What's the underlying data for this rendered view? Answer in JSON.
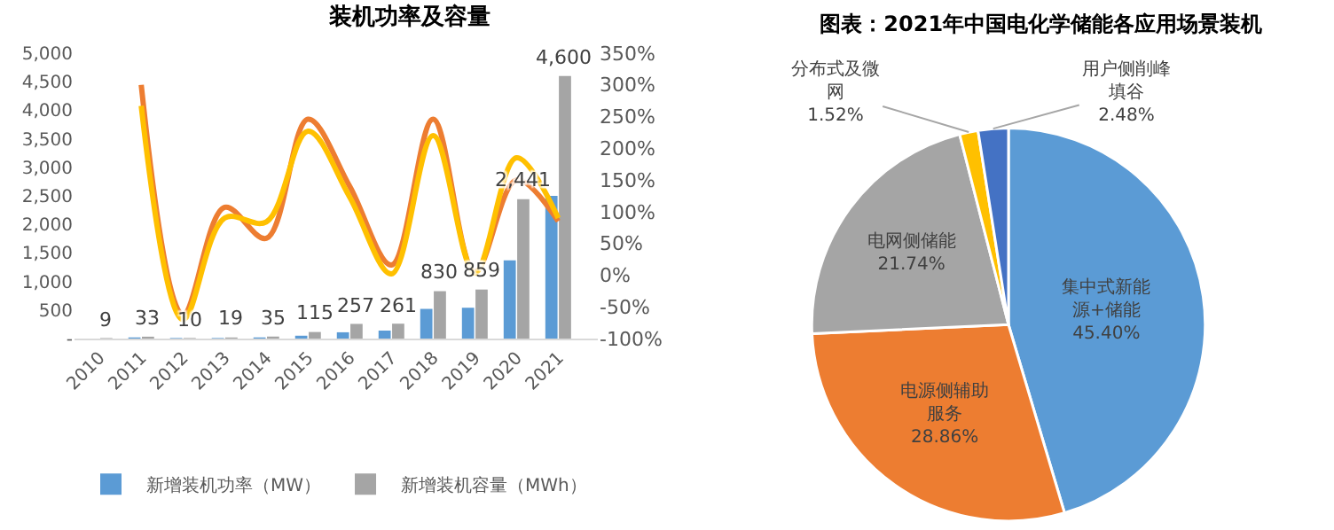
{
  "chart_data": [
    {
      "type": "bar",
      "title": "装机功率及容量",
      "categories": [
        "2010",
        "2011",
        "2012",
        "2013",
        "2014",
        "2015",
        "2016",
        "2017",
        "2018",
        "2019",
        "2020",
        "2021"
      ],
      "series": [
        {
          "name": "新增装机功率（MW）",
          "color": "#5b9bd5",
          "values": [
            0,
            20,
            10,
            10,
            20,
            50,
            110,
            140,
            520,
            540,
            1370,
            2500
          ]
        },
        {
          "name": "新增装机容量（MWh）",
          "color": "#a5a5a5",
          "values": [
            9,
            33,
            10,
            19,
            35,
            115,
            257,
            261,
            830,
            859,
            2441,
            4600
          ],
          "value_labels": [
            "9",
            "33",
            "10",
            "19",
            "35",
            "115",
            "257",
            "261",
            "830",
            "859",
            "2,441",
            "4,600"
          ]
        },
        {
          "type": "line",
          "axis": "y2",
          "color": "#ed7d31",
          "values": [
            null,
            300,
            -62,
            107,
            58,
            246,
            140,
            16,
            246,
            5,
            150,
            85
          ]
        },
        {
          "type": "line",
          "axis": "y2",
          "color": "#ffc000",
          "values": [
            null,
            267,
            -70,
            90,
            84,
            227,
            123,
            2,
            220,
            3,
            185,
            90
          ]
        }
      ],
      "ylim": [
        0,
        5000
      ],
      "yticks": [
        {
          "value": 0,
          "label": "-"
        },
        {
          "value": 500,
          "label": "500"
        },
        {
          "value": 1000,
          "label": "1,000"
        },
        {
          "value": 1500,
          "label": "1,500"
        },
        {
          "value": 2000,
          "label": "2,000"
        },
        {
          "value": 2500,
          "label": "2,500"
        },
        {
          "value": 3000,
          "label": "3,000"
        },
        {
          "value": 3500,
          "label": "3,500"
        },
        {
          "value": 4000,
          "label": "4,000"
        },
        {
          "value": 4500,
          "label": "4,500"
        },
        {
          "value": 5000,
          "label": "5,000"
        }
      ],
      "y2lim": [
        -100,
        350
      ],
      "y2ticks": [
        {
          "value": -100,
          "label": "-100%"
        },
        {
          "value": -50,
          "label": "-50%"
        },
        {
          "value": 0,
          "label": "0%"
        },
        {
          "value": 50,
          "label": "50%"
        },
        {
          "value": 100,
          "label": "100%"
        },
        {
          "value": 150,
          "label": "150%"
        },
        {
          "value": 200,
          "label": "200%"
        },
        {
          "value": 250,
          "label": "250%"
        },
        {
          "value": 300,
          "label": "300%"
        },
        {
          "value": 350,
          "label": "350%"
        }
      ],
      "legend": "bottom",
      "marker": "none",
      "line_style": "solid"
    },
    {
      "type": "pie",
      "title": "图表：2021年中国电化学储能各应用场景装机",
      "categories": [
        "集中式新能源+储能",
        "电源侧辅助服务",
        "电网侧储能",
        "分布式及微网",
        "用户侧削峰填谷"
      ],
      "values": [
        45.4,
        28.86,
        21.74,
        1.52,
        2.48
      ],
      "colors": [
        "#5b9bd5",
        "#ed7d31",
        "#a5a5a5",
        "#ffc000",
        "#4472c4"
      ],
      "value_labels": [
        "45.40%",
        "28.86%",
        "21.74%",
        "1.52%",
        "2.48%"
      ]
    }
  ]
}
